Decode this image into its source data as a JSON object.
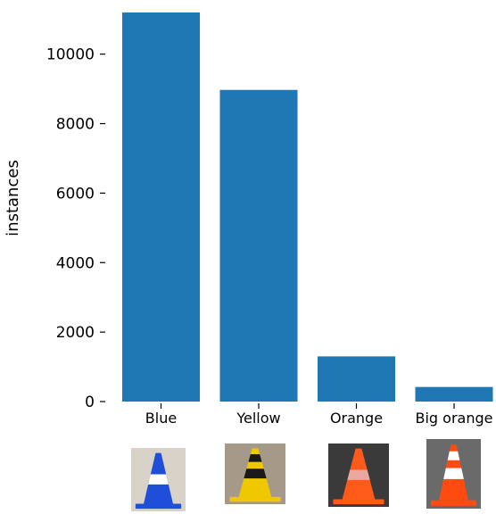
{
  "chart_data": {
    "type": "bar",
    "categories": [
      "Blue",
      "Yellow",
      "Orange",
      "Big orange"
    ],
    "values": [
      11200,
      8970,
      1300,
      420
    ],
    "ylabel": "instances",
    "xlabel": "",
    "title": "",
    "ylim": [
      0,
      11250
    ],
    "yticks": [
      0,
      2000,
      4000,
      6000,
      8000,
      10000
    ],
    "yticks_labels": [
      "0",
      "2000",
      "4000",
      "6000",
      "8000",
      "10000"
    ],
    "grid": false,
    "legend": "none",
    "bar_color": "#1f77b4",
    "cone_images": [
      {
        "category": "Blue",
        "cone_color": "#1f4fd8",
        "stripe_color": "#ffffff",
        "ground": "#d8d2c8"
      },
      {
        "category": "Yellow",
        "cone_color": "#f0c800",
        "stripe_color": "#1a1a1a",
        "ground": "#a59a88"
      },
      {
        "category": "Orange",
        "cone_color": "#ff5a1a",
        "stripe_color": "#e8a8a0",
        "ground": "#3a3a3a"
      },
      {
        "category": "Big orange",
        "cone_color": "#ff4a10",
        "stripe_color": "#ffffff",
        "ground": "#6a6a6a"
      }
    ]
  }
}
